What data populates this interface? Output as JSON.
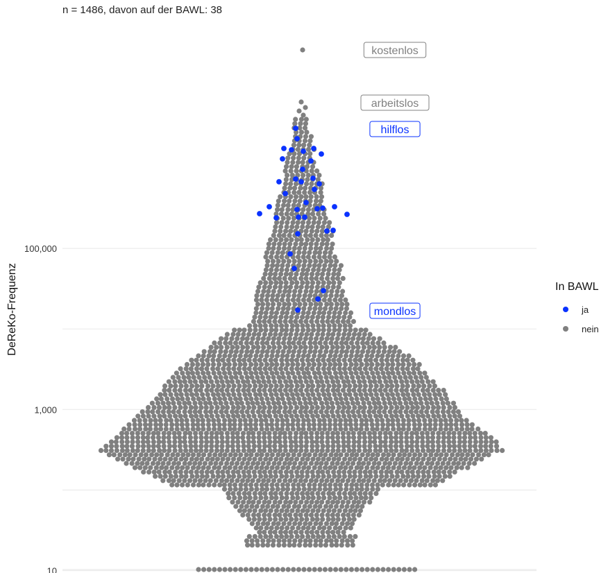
{
  "chart_data": {
    "type": "scatter",
    "subtitle": "n = 1486, davon auf der BAWL: 38",
    "ylabel": "DeReKo-Frequenz",
    "yscale": "log10",
    "ylim": [
      1,
      300000
    ],
    "yticks": [
      10,
      1000,
      100000
    ],
    "ytick_labels": [
      "10",
      "1,000",
      "100,000"
    ],
    "grid": true,
    "legend": {
      "title": "In BAWL",
      "position": "right",
      "entries": [
        {
          "label": "ja",
          "color": "#0a32ff"
        },
        {
          "label": "nein",
          "color": "#808080"
        }
      ]
    },
    "annotations": [
      {
        "text": "kostenlos",
        "y": 290000,
        "color": "#808080"
      },
      {
        "text": "arbeitslos",
        "y": 65000,
        "color": "#808080"
      },
      {
        "text": "hilflos",
        "y": 29000,
        "color": "#0a32ff"
      },
      {
        "text": "mondlos",
        "y": 1550,
        "color": "#0a32ff"
      }
    ],
    "series": [
      {
        "name": "ja",
        "color": "#0a32ff",
        "count": 38
      },
      {
        "name": "nein",
        "color": "#808080",
        "count": 1448
      }
    ],
    "n_total": 1486,
    "n_bawl": 38
  }
}
